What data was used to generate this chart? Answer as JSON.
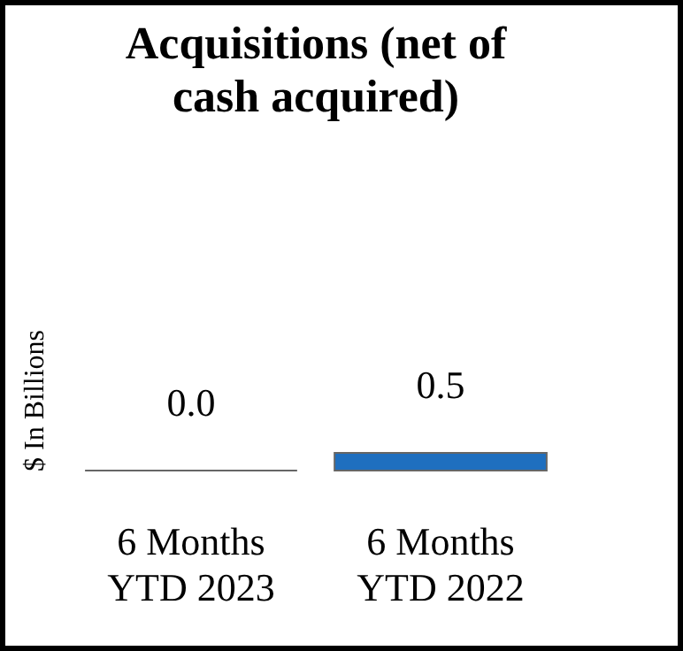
{
  "chart_data": {
    "type": "bar",
    "title": "Acquisitions (net of cash acquired)",
    "ylabel": "$ In Billions",
    "categories": [
      "6 Months YTD 2023",
      "6 Months YTD 2022"
    ],
    "values": [
      0.0,
      0.5
    ],
    "value_labels": [
      "0.0",
      "0.5"
    ],
    "color": "#1f6fbf",
    "grid": false
  }
}
